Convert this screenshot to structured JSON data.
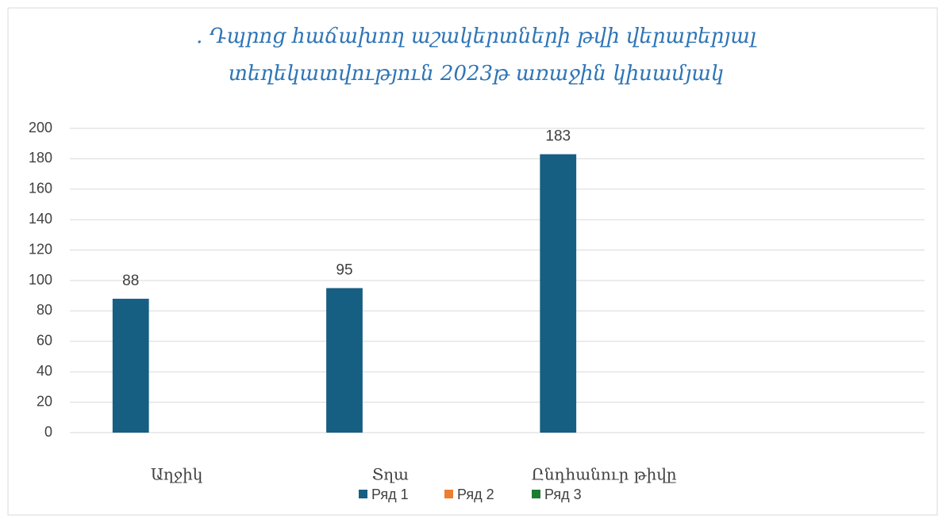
{
  "chart_data": {
    "type": "bar",
    "title": [
      ". Դպրոց հաճախող աշակերտների թվի վերաբերյալ",
      "տեղեկատվություն 2023թ  առաջին կիսամյակ"
    ],
    "categories": [
      "Աղջիկ",
      "Տղա",
      "Ընդհանուր թիվը",
      null
    ],
    "series": [
      {
        "name": "Ряд 1",
        "color": "#175e83",
        "values": [
          88,
          95,
          183,
          null
        ]
      },
      {
        "name": "Ряд 2",
        "color": "#ed7d31",
        "values": [
          null,
          null,
          null,
          null
        ]
      },
      {
        "name": "Ряд 3",
        "color": "#1e7b34",
        "values": [
          null,
          null,
          null,
          null
        ]
      }
    ],
    "ylim": [
      0,
      200
    ],
    "yticks": [
      0,
      20,
      40,
      60,
      80,
      100,
      120,
      140,
      160,
      180,
      200
    ],
    "grid": true,
    "legend": "bottom"
  }
}
